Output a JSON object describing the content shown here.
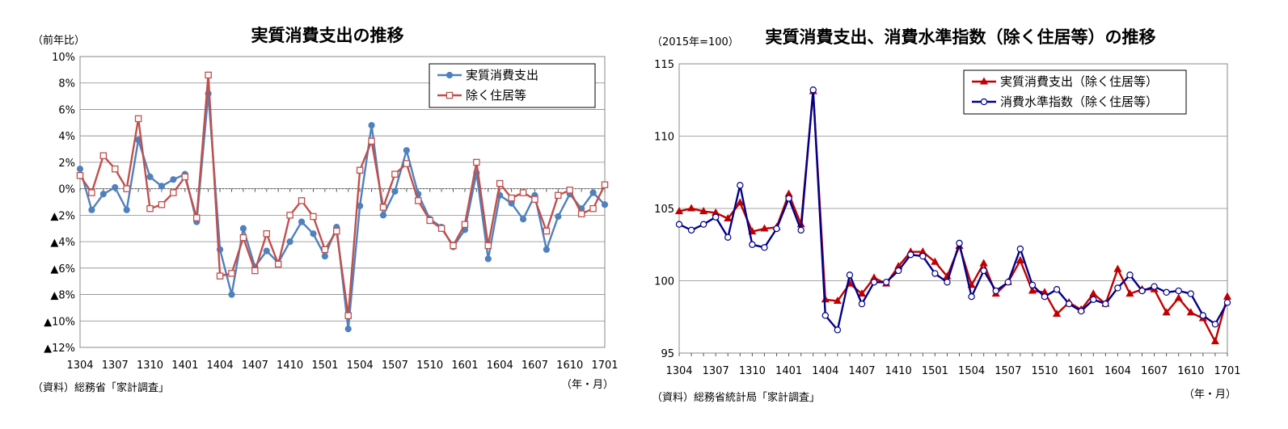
{
  "chart_data": [
    {
      "type": "line",
      "title": "実質消費支出の推移",
      "ylabel": "（前年比）",
      "xlabel": "（年・月）",
      "source": "（資料）総務省「家計調査」",
      "ylim": [
        -12,
        10
      ],
      "y_ticks": [
        10,
        8,
        6,
        4,
        2,
        0,
        -2,
        -4,
        -6,
        -8,
        -10,
        -12
      ],
      "y_tick_labels": [
        "10%",
        "8%",
        "6%",
        "4%",
        "2%",
        "0%",
        "▲2%",
        "▲4%",
        "▲6%",
        "▲8%",
        "▲10%",
        "▲12%"
      ],
      "x_tick_labels": [
        "1304",
        "1307",
        "1310",
        "1401",
        "1404",
        "1407",
        "1410",
        "1501",
        "1504",
        "1507",
        "1510",
        "1601",
        "1604",
        "1607",
        "1610",
        "1701"
      ],
      "x_tick_step": 3,
      "grid": true,
      "legend_position": "top-right",
      "series": [
        {
          "name": "実質消費支出",
          "color": "#4f81bd",
          "marker": "circle-filled",
          "values": [
            1.5,
            -1.6,
            -0.4,
            0.1,
            -1.6,
            3.7,
            0.9,
            0.2,
            0.7,
            1.1,
            -2.5,
            7.2,
            -4.6,
            -8.0,
            -3.0,
            -5.9,
            -4.7,
            -5.6,
            -4.0,
            -2.5,
            -3.4,
            -5.1,
            -2.9,
            -10.6,
            -1.3,
            4.8,
            -2.0,
            -0.2,
            2.9,
            -0.4,
            -2.3,
            -2.9,
            -4.4,
            -3.1,
            1.2,
            -5.3,
            -0.5,
            -1.1,
            -2.3,
            -0.5,
            -4.6,
            -2.1,
            -0.4,
            -1.5,
            -0.3,
            -1.2
          ]
        },
        {
          "name": "除く住居等",
          "color": "#c0504d",
          "marker": "square-open",
          "values": [
            1.0,
            -0.3,
            2.5,
            1.5,
            0.0,
            5.3,
            -1.5,
            -1.2,
            -0.3,
            0.9,
            -2.2,
            8.6,
            -6.6,
            -6.4,
            -3.7,
            -6.2,
            -3.4,
            -5.7,
            -2.0,
            -0.9,
            -2.1,
            -4.6,
            -3.2,
            -9.6,
            1.4,
            3.6,
            -1.4,
            1.1,
            1.9,
            -0.9,
            -2.4,
            -3.0,
            -4.3,
            -2.7,
            2.0,
            -4.3,
            0.4,
            -0.7,
            -0.3,
            -0.8,
            -3.2,
            -0.5,
            -0.1,
            -1.9,
            -1.5,
            0.3
          ]
        }
      ]
    },
    {
      "type": "line",
      "title": "実質消費支出、消費水準指数（除く住居等）の推移",
      "ylabel": "（2015年=100）",
      "xlabel": "（年・月）",
      "source": "（資料）総務省統計局「家計調査」",
      "ylim": [
        95,
        115
      ],
      "y_ticks": [
        115,
        110,
        105,
        100,
        95
      ],
      "y_tick_labels": [
        "115",
        "110",
        "105",
        "100",
        "95"
      ],
      "x_tick_labels": [
        "1304",
        "1307",
        "1310",
        "1401",
        "1404",
        "1407",
        "1410",
        "1501",
        "1504",
        "1507",
        "1510",
        "1601",
        "1604",
        "1607",
        "1610",
        "1701"
      ],
      "x_tick_step": 3,
      "grid": true,
      "legend_position": "top-right",
      "series": [
        {
          "name": "実質消費支出（除く住居等）",
          "color": "#c00000",
          "marker": "triangle-filled",
          "values": [
            104.8,
            105.0,
            104.8,
            104.7,
            104.3,
            105.4,
            103.4,
            103.6,
            103.7,
            106.0,
            103.9,
            113.1,
            98.7,
            98.6,
            99.8,
            99.1,
            100.2,
            99.8,
            101.0,
            102.0,
            102.0,
            101.3,
            100.3,
            102.4,
            99.7,
            101.2,
            99.1,
            99.9,
            101.4,
            99.3,
            99.2,
            97.7,
            98.5,
            98.0,
            99.1,
            98.4,
            100.8,
            99.1,
            99.4,
            99.4,
            97.8,
            98.8,
            97.8,
            97.4,
            95.8,
            98.9
          ]
        },
        {
          "name": "消費水準指数（除く住居等）",
          "color": "#00008b",
          "marker": "circle-open",
          "values": [
            103.9,
            103.5,
            103.9,
            104.4,
            103.0,
            106.6,
            102.5,
            102.3,
            103.6,
            105.7,
            103.5,
            113.2,
            97.6,
            96.6,
            100.4,
            98.4,
            99.9,
            99.9,
            100.7,
            101.8,
            101.7,
            100.5,
            99.9,
            102.6,
            98.9,
            100.7,
            99.3,
            99.9,
            102.2,
            99.7,
            98.9,
            99.4,
            98.4,
            97.9,
            98.7,
            98.4,
            99.5,
            100.4,
            99.3,
            99.6,
            99.2,
            99.3,
            99.1,
            97.6,
            97.0,
            98.5
          ]
        }
      ]
    }
  ]
}
